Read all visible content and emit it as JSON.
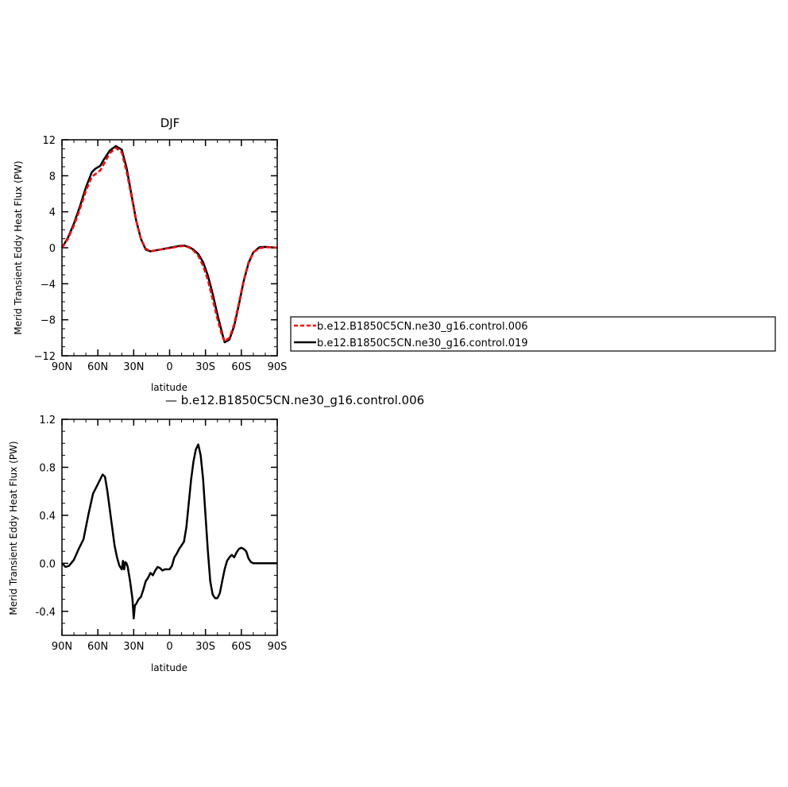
{
  "chart_data": [
    {
      "type": "line",
      "title": "DJF",
      "xlabel": "latitude",
      "ylabel": "Merid Transient Eddy Heat Flux (PW)",
      "xlim": [
        90,
        -90
      ],
      "ylim": [
        -12,
        12
      ],
      "xticks": [
        90,
        60,
        30,
        0,
        -30,
        -60,
        -90
      ],
      "xtick_labels": [
        "90N",
        "60N",
        "30N",
        "0",
        "30S",
        "60S",
        "90S"
      ],
      "yticks": [
        -12,
        -8,
        -4,
        0,
        4,
        8,
        12
      ],
      "ytick_labels": [
        "−12",
        "−8",
        "−4",
        "0",
        "4",
        "8",
        "12"
      ],
      "legend_position": "right",
      "series": [
        {
          "name": "b.e12.B1850C5CN.ne30_g16.control.006",
          "color": "#ff0000",
          "dash": "dashed",
          "x": [
            90,
            85,
            80,
            75,
            70,
            65,
            62,
            58,
            55,
            50,
            45,
            40,
            36,
            32,
            28,
            24,
            20,
            16,
            12,
            8,
            4,
            0,
            -4,
            -8,
            -12,
            -16,
            -20,
            -24,
            -28,
            -32,
            -36,
            -40,
            -44,
            -46,
            -50,
            -54,
            -58,
            -62,
            -66,
            -70,
            -75,
            -80,
            -85,
            -90
          ],
          "y": [
            0,
            1.0,
            2.5,
            4.3,
            6.3,
            7.9,
            8.2,
            8.6,
            9.3,
            10.5,
            11.1,
            10.6,
            8.5,
            5.8,
            3.0,
            1.0,
            -0.1,
            -0.4,
            -0.3,
            -0.2,
            -0.1,
            -0.05,
            0.05,
            0.15,
            0.2,
            0.05,
            -0.3,
            -0.9,
            -2.0,
            -3.6,
            -5.7,
            -7.9,
            -9.8,
            -10.4,
            -10.0,
            -8.5,
            -6.1,
            -3.6,
            -1.6,
            -0.5,
            -0.05,
            0.05,
            0.05,
            0
          ]
        },
        {
          "name": "b.e12.B1850C5CN.ne30_g16.control.019",
          "color": "#000000",
          "dash": "solid",
          "x": [
            90,
            85,
            80,
            75,
            70,
            65,
            62,
            58,
            55,
            50,
            45,
            40,
            36,
            32,
            28,
            24,
            20,
            16,
            12,
            8,
            4,
            0,
            -4,
            -8,
            -12,
            -16,
            -20,
            -24,
            -28,
            -32,
            -36,
            -40,
            -44,
            -46,
            -50,
            -54,
            -58,
            -62,
            -66,
            -70,
            -75,
            -80,
            -85,
            -90
          ],
          "y": [
            0,
            1.1,
            2.7,
            4.6,
            6.7,
            8.4,
            8.8,
            9.1,
            9.8,
            10.8,
            11.3,
            10.9,
            8.9,
            6.0,
            3.1,
            1.0,
            -0.2,
            -0.4,
            -0.3,
            -0.2,
            -0.1,
            0.0,
            0.1,
            0.2,
            0.25,
            0.1,
            -0.2,
            -0.7,
            -1.6,
            -3.1,
            -5.1,
            -7.4,
            -9.5,
            -10.5,
            -10.2,
            -8.7,
            -6.3,
            -3.7,
            -1.7,
            -0.5,
            0.05,
            0.1,
            0.05,
            0
          ]
        }
      ]
    },
    {
      "type": "line",
      "title": "— b.e12.B1850C5CN.ne30_g16.control.006",
      "xlabel": "latitude",
      "ylabel": "Merid Transient Eddy Heat Flux (PW)",
      "xlim": [
        90,
        -90
      ],
      "ylim": [
        -0.6,
        1.2
      ],
      "xticks": [
        90,
        60,
        30,
        0,
        -30,
        -60,
        -90
      ],
      "xtick_labels": [
        "90N",
        "60N",
        "30N",
        "0",
        "30S",
        "60S",
        "90S"
      ],
      "yticks": [
        -0.4,
        0.0,
        0.4,
        0.8,
        1.2
      ],
      "ytick_labels": [
        "-0.4",
        "0.0",
        "0.4",
        "0.8",
        "1.2"
      ],
      "series": [
        {
          "color": "#000000",
          "dash": "solid",
          "x": [
            90,
            87,
            84,
            80,
            76,
            72,
            68,
            64,
            62,
            58,
            56,
            54,
            52,
            50,
            48,
            46,
            44,
            42,
            40,
            39,
            38,
            37,
            36,
            35,
            33,
            31,
            30,
            29,
            28,
            26,
            24,
            22,
            20,
            18,
            16,
            14,
            12,
            10,
            8,
            6,
            4,
            2,
            0,
            -2,
            -4,
            -6,
            -8,
            -10,
            -12,
            -14,
            -16,
            -18,
            -20,
            -22,
            -24,
            -26,
            -28,
            -30,
            -32,
            -34,
            -36,
            -38,
            -40,
            -42,
            -44,
            -46,
            -48,
            -50,
            -52,
            -54,
            -56,
            -58,
            -60,
            -62,
            -64,
            -66,
            -68,
            -70,
            -72,
            -74,
            -76,
            -78,
            -80,
            -82,
            -84,
            -86,
            -88,
            -90
          ],
          "y": [
            0.0,
            -0.03,
            -0.02,
            0.03,
            0.12,
            0.2,
            0.4,
            0.58,
            0.62,
            0.7,
            0.74,
            0.72,
            0.6,
            0.45,
            0.3,
            0.15,
            0.05,
            -0.02,
            -0.05,
            0.02,
            -0.05,
            0.01,
            0.0,
            -0.03,
            -0.15,
            -0.3,
            -0.46,
            -0.35,
            -0.34,
            -0.3,
            -0.28,
            -0.22,
            -0.15,
            -0.12,
            -0.08,
            -0.1,
            -0.06,
            -0.03,
            -0.04,
            -0.06,
            -0.05,
            -0.05,
            -0.05,
            -0.02,
            0.05,
            0.08,
            0.12,
            0.15,
            0.18,
            0.3,
            0.5,
            0.7,
            0.85,
            0.95,
            0.99,
            0.9,
            0.7,
            0.4,
            0.1,
            -0.15,
            -0.26,
            -0.29,
            -0.29,
            -0.25,
            -0.15,
            -0.05,
            0.02,
            0.05,
            0.07,
            0.05,
            0.09,
            0.12,
            0.13,
            0.12,
            0.1,
            0.04,
            0.01,
            0.0,
            0.0,
            0.0,
            0.0,
            0.0,
            0.0,
            0.0,
            0.0,
            0.0,
            0.0,
            0.0
          ]
        }
      ]
    }
  ]
}
